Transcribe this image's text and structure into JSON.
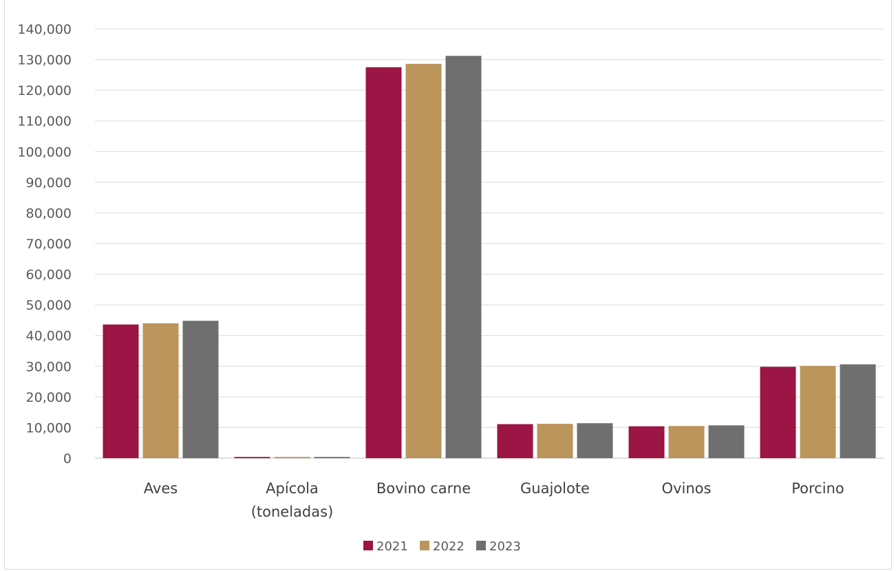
{
  "chart_data": {
    "type": "bar",
    "title": "",
    "categories": [
      "Aves",
      "Apícola\n(toneladas)",
      "Bovino carne",
      "Guajolote",
      "Ovinos",
      "Porcino"
    ],
    "series": [
      {
        "name": "2021",
        "color": "#9b1545",
        "values": [
          43600,
          400,
          127500,
          11100,
          10400,
          29800
        ]
      },
      {
        "name": "2022",
        "color": "#bc955c",
        "values": [
          44000,
          400,
          128600,
          11200,
          10500,
          30100
        ]
      },
      {
        "name": "2023",
        "color": "#6f6f6f",
        "values": [
          44800,
          400,
          131200,
          11400,
          10700,
          30600
        ]
      }
    ],
    "ylim": [
      0,
      140000
    ],
    "yticks": [
      0,
      10000,
      20000,
      30000,
      40000,
      50000,
      60000,
      70000,
      80000,
      90000,
      100000,
      110000,
      120000,
      130000,
      140000
    ],
    "ytick_labels": [
      "0",
      "10,000",
      "20,000",
      "30,000",
      "40,000",
      "50,000",
      "60,000",
      "70,000",
      "80,000",
      "90,000",
      "100,000",
      "110,000",
      "120,000",
      "130,000",
      "140,000"
    ],
    "grid": true,
    "legend_position": "bottom"
  }
}
